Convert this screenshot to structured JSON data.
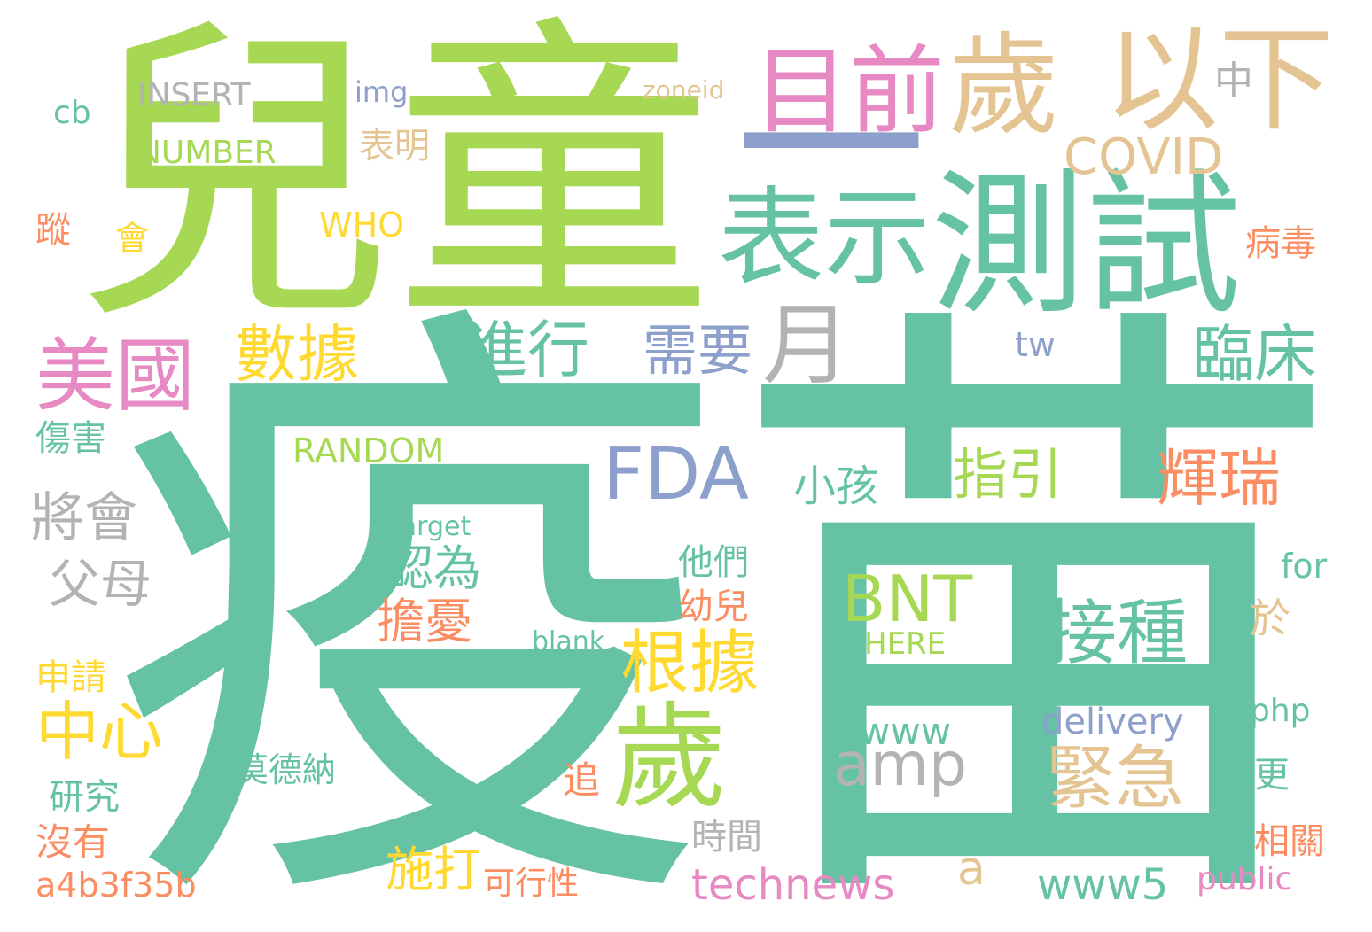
{
  "words": [
    {
      "text": "疫苗",
      "color": "#66c2a5",
      "weight": 1.0
    },
    {
      "text": "兒童",
      "color": "#a6d854",
      "weight": 0.8
    },
    {
      "text": "測試",
      "color": "#66c2a5",
      "weight": 0.5
    },
    {
      "text": "以下",
      "color": "#e5c494",
      "weight": 0.42
    },
    {
      "text": "歲",
      "color": "#e5c494",
      "weight": 0.4
    },
    {
      "text": "一",
      "color": "#8da0cb",
      "weight": 0.38
    },
    {
      "text": "表示",
      "color": "#66c2a5",
      "weight": 0.36
    },
    {
      "text": "目前",
      "color": "#e78ac3",
      "weight": 0.33
    },
    {
      "text": "歲",
      "color": "#a6d854",
      "weight": 0.32
    },
    {
      "text": "美國",
      "color": "#e78ac3",
      "weight": 0.28
    },
    {
      "text": "月",
      "color": "#b3b3b3",
      "weight": 0.27
    },
    {
      "text": "FDA",
      "color": "#8da0cb",
      "weight": 0.26
    },
    {
      "text": "接種",
      "color": "#66c2a5",
      "weight": 0.25
    },
    {
      "text": "緊急",
      "color": "#e5c494",
      "weight": 0.24
    },
    {
      "text": "BNT",
      "color": "#a6d854",
      "weight": 0.24
    },
    {
      "text": "amp",
      "color": "#b3b3b3",
      "weight": 0.22
    },
    {
      "text": "根據",
      "color": "#ffd92f",
      "weight": 0.22
    },
    {
      "text": "中心",
      "color": "#ffd92f",
      "weight": 0.21
    },
    {
      "text": "數據",
      "color": "#ffd92f",
      "weight": 0.2
    },
    {
      "text": "需要",
      "color": "#8da0cb",
      "weight": 0.2
    },
    {
      "text": "進行",
      "color": "#66c2a5",
      "weight": 0.2
    },
    {
      "text": "臨床",
      "color": "#66c2a5",
      "weight": 0.2
    },
    {
      "text": "輝瑞",
      "color": "#fc8d62",
      "weight": 0.2
    },
    {
      "text": "COVID",
      "color": "#e5c494",
      "weight": 0.19
    },
    {
      "text": "指引",
      "color": "#a6d854",
      "weight": 0.18
    },
    {
      "text": "將會",
      "color": "#b3b3b3",
      "weight": 0.17
    },
    {
      "text": "technews",
      "color": "#e78ac3",
      "weight": 0.17
    },
    {
      "text": "www5",
      "color": "#66c2a5",
      "weight": 0.17
    },
    {
      "text": "www",
      "color": "#66c2a5",
      "weight": 0.16
    },
    {
      "text": "小孩",
      "color": "#66c2a5",
      "weight": 0.16
    },
    {
      "text": "父母",
      "color": "#b3b3b3",
      "weight": 0.16
    },
    {
      "text": "擔憂",
      "color": "#fc8d62",
      "weight": 0.16
    },
    {
      "text": "認為",
      "color": "#66c2a5",
      "weight": 0.15
    },
    {
      "text": "施打",
      "color": "#ffd92f",
      "weight": 0.15
    },
    {
      "text": "delivery",
      "color": "#8da0cb",
      "weight": 0.14
    },
    {
      "text": "NUMBER",
      "color": "#a6d854",
      "weight": 0.14
    },
    {
      "text": "INSERT",
      "color": "#b3b3b3",
      "weight": 0.14
    },
    {
      "text": "RANDOM",
      "color": "#a6d854",
      "weight": 0.14
    },
    {
      "text": "中",
      "color": "#b3b3b3",
      "weight": 0.13
    },
    {
      "text": "於",
      "color": "#e5c494",
      "weight": 0.13
    },
    {
      "text": "HERE",
      "color": "#a6d854",
      "weight": 0.13
    },
    {
      "text": "a4b3f35b",
      "color": "#fc8d62",
      "weight": 0.12
    },
    {
      "text": "莫德納",
      "color": "#66c2a5",
      "weight": 0.12
    },
    {
      "text": "public",
      "color": "#e78ac3",
      "weight": 0.12
    },
    {
      "text": "php",
      "color": "#66c2a5",
      "weight": 0.12
    },
    {
      "text": "他們",
      "color": "#66c2a5",
      "weight": 0.12
    },
    {
      "text": "傷害",
      "color": "#66c2a5",
      "weight": 0.12
    },
    {
      "text": "病毒",
      "color": "#fc8d62",
      "weight": 0.11
    },
    {
      "text": "時間",
      "color": "#b3b3b3",
      "weight": 0.11
    },
    {
      "text": "表明",
      "color": "#e5c494",
      "weight": 0.11
    },
    {
      "text": "WHO",
      "color": "#ffd92f",
      "weight": 0.11
    },
    {
      "text": "沒有",
      "color": "#fc8d62",
      "weight": 0.11
    },
    {
      "text": "研究",
      "color": "#66c2a5",
      "weight": 0.11
    },
    {
      "text": "申請",
      "color": "#ffd92f",
      "weight": 0.11
    },
    {
      "text": "相關",
      "color": "#fc8d62",
      "weight": 0.11
    },
    {
      "text": "幼兒",
      "color": "#fc8d62",
      "weight": 0.11
    },
    {
      "text": "追",
      "color": "#fc8d62",
      "weight": 0.11
    },
    {
      "text": "for",
      "color": "#66c2a5",
      "weight": 0.11
    },
    {
      "text": "a",
      "color": "#e5c494",
      "weight": 0.11
    },
    {
      "text": "tw",
      "color": "#8da0cb",
      "weight": 0.1
    },
    {
      "text": "target",
      "color": "#66c2a5",
      "weight": 0.1
    },
    {
      "text": "blank",
      "color": "#66c2a5",
      "weight": 0.1
    },
    {
      "text": "zoneid",
      "color": "#e5c494",
      "weight": 0.1
    },
    {
      "text": "img",
      "color": "#8da0cb",
      "weight": 0.1
    },
    {
      "text": "cb",
      "color": "#66c2a5",
      "weight": 0.1
    },
    {
      "text": "可行性",
      "color": "#fc8d62",
      "weight": 0.1
    },
    {
      "text": "更",
      "color": "#66c2a5",
      "weight": 0.1
    },
    {
      "text": "會",
      "color": "#ffd92f",
      "weight": 0.1
    },
    {
      "text": "蹤",
      "color": "#fc8d62",
      "weight": 0.1
    }
  ]
}
